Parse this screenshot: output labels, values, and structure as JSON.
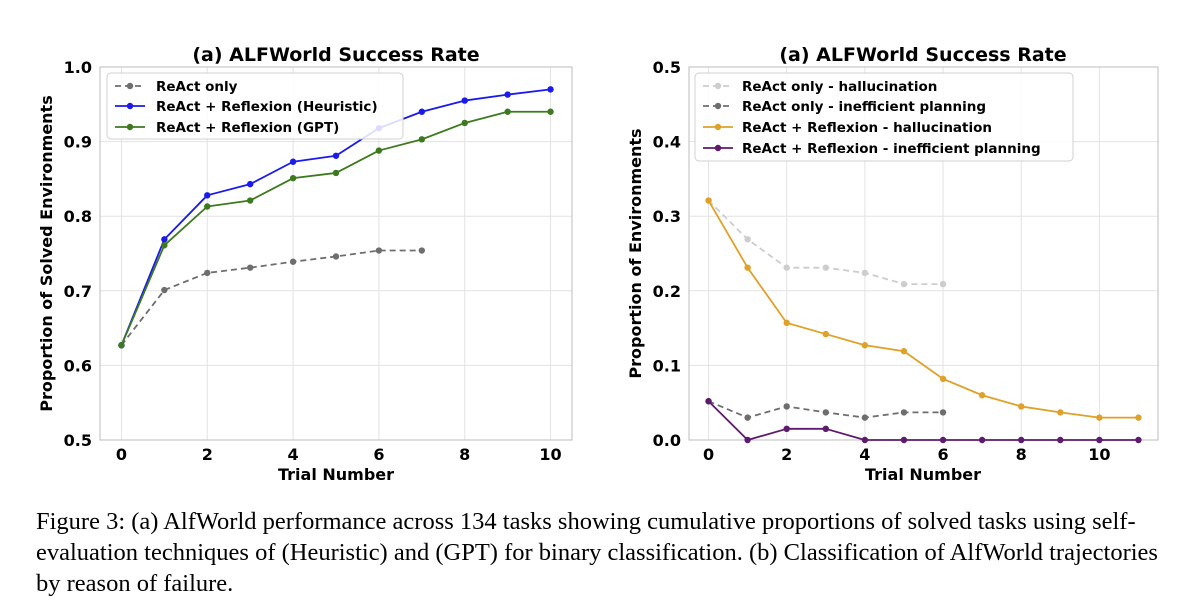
{
  "chart_data": [
    {
      "type": "line",
      "title": "(a) ALFWorld Success Rate",
      "xlabel": "Trial Number",
      "ylabel": "Proportion of Solved Environments",
      "xlim": [
        -0.5,
        10.5
      ],
      "ylim": [
        0.5,
        1.0
      ],
      "xticks": [
        0,
        2,
        4,
        6,
        8,
        10
      ],
      "yticks": [
        0.5,
        0.6,
        0.7,
        0.8,
        0.9,
        1.0
      ],
      "tick_decimals": 1,
      "grid": true,
      "legend_position": "top-left",
      "series": [
        {
          "name": "ReAct only",
          "color": "#6e6e6e",
          "dashed": true,
          "x": [
            0,
            1,
            2,
            3,
            4,
            5,
            6,
            7
          ],
          "y": [
            0.627,
            0.701,
            0.724,
            0.731,
            0.739,
            0.746,
            0.754,
            0.754
          ]
        },
        {
          "name": "ReAct + Reflexion (Heuristic)",
          "color": "#1a1aef",
          "dashed": false,
          "x": [
            0,
            1,
            2,
            3,
            4,
            5,
            6,
            7,
            8,
            9,
            10
          ],
          "y": [
            0.627,
            0.769,
            0.828,
            0.843,
            0.873,
            0.881,
            0.918,
            0.94,
            0.955,
            0.963,
            0.97
          ]
        },
        {
          "name": "ReAct + Reflexion (GPT)",
          "color": "#3d7a1f",
          "dashed": false,
          "x": [
            0,
            1,
            2,
            3,
            4,
            5,
            6,
            7,
            8,
            9,
            10
          ],
          "y": [
            0.627,
            0.761,
            0.813,
            0.821,
            0.851,
            0.858,
            0.888,
            0.903,
            0.925,
            0.94,
            0.94
          ]
        }
      ]
    },
    {
      "type": "line",
      "title": "(a) ALFWorld Success Rate",
      "xlabel": "Trial Number",
      "ylabel": "Proportion of Environments",
      "xlim": [
        -0.5,
        11.5
      ],
      "ylim": [
        0.0,
        0.5
      ],
      "xticks": [
        0,
        2,
        4,
        6,
        8,
        10
      ],
      "yticks": [
        0.0,
        0.1,
        0.2,
        0.3,
        0.4,
        0.5
      ],
      "tick_decimals": 1,
      "grid": true,
      "legend_position": "top-left",
      "series": [
        {
          "name": "ReAct only - hallucination",
          "color": "#cdcdcd",
          "dashed": true,
          "x": [
            0,
            1,
            2,
            3,
            4,
            5,
            6
          ],
          "y": [
            0.321,
            0.269,
            0.231,
            0.231,
            0.224,
            0.209,
            0.209
          ]
        },
        {
          "name": "ReAct only - inefficient planning",
          "color": "#6e6e6e",
          "dashed": true,
          "x": [
            0,
            1,
            2,
            3,
            4,
            5,
            6
          ],
          "y": [
            0.052,
            0.03,
            0.045,
            0.037,
            0.03,
            0.037,
            0.037
          ]
        },
        {
          "name": "ReAct + Reflexion - hallucination",
          "color": "#e0a12a",
          "dashed": false,
          "x": [
            0,
            1,
            2,
            3,
            4,
            5,
            6,
            7,
            8,
            9,
            10,
            11
          ],
          "y": [
            0.321,
            0.231,
            0.157,
            0.142,
            0.127,
            0.119,
            0.082,
            0.06,
            0.045,
            0.037,
            0.03,
            0.03
          ]
        },
        {
          "name": "ReAct + Reflexion - inefficient planning",
          "color": "#5e1a6e",
          "dashed": false,
          "x": [
            0,
            1,
            2,
            3,
            4,
            5,
            6,
            7,
            8,
            9,
            10,
            11
          ],
          "y": [
            0.052,
            0.0,
            0.015,
            0.015,
            0.0,
            0.0,
            0.0,
            0.0,
            0.0,
            0.0,
            0.0,
            0.0
          ]
        }
      ]
    }
  ],
  "caption": "Figure 3: (a) AlfWorld performance across 134 tasks showing cumulative proportions of solved tasks using self-evaluation techniques of (Heuristic) and (GPT) for binary classification. (b) Classification of AlfWorld trajectories by reason of failure."
}
